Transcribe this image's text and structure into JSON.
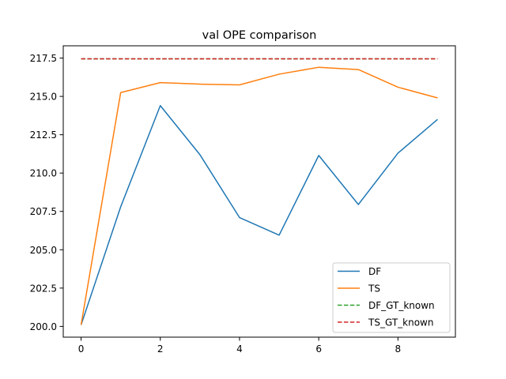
{
  "chart_data": {
    "type": "line",
    "title": "val OPE comparison",
    "xlabel": "",
    "ylabel": "",
    "xlim": [
      -0.45,
      9.45
    ],
    "ylim": [
      199.3,
      218.3
    ],
    "x_ticks": [
      0,
      2,
      4,
      6,
      8
    ],
    "x_tick_labels": [
      "0",
      "2",
      "4",
      "6",
      "8"
    ],
    "y_ticks": [
      200.0,
      202.5,
      205.0,
      207.5,
      210.0,
      212.5,
      215.0,
      217.5
    ],
    "y_tick_labels": [
      "200.0",
      "202.5",
      "205.0",
      "207.5",
      "210.0",
      "212.5",
      "215.0",
      "217.5"
    ],
    "grid": false,
    "legend_position": "lower-right",
    "x": [
      0,
      1,
      2,
      3,
      4,
      5,
      6,
      7,
      8,
      9
    ],
    "series": [
      {
        "name": "DF",
        "color": "#1f77b4",
        "dash": "solid",
        "values": [
          200.1,
          207.8,
          214.4,
          211.2,
          207.1,
          205.95,
          211.15,
          207.95,
          211.3,
          213.5
        ]
      },
      {
        "name": "TS",
        "color": "#ff7f0e",
        "dash": "solid",
        "values": [
          200.1,
          215.25,
          215.9,
          215.8,
          215.75,
          216.45,
          216.9,
          216.75,
          215.6,
          214.9
        ]
      },
      {
        "name": "DF_GT_known",
        "color": "#2ca02c",
        "dash": "dashed",
        "values": [
          217.45,
          217.45,
          217.45,
          217.45,
          217.45,
          217.45,
          217.45,
          217.45,
          217.45,
          217.45
        ]
      },
      {
        "name": "TS_GT_known",
        "color": "#d62728",
        "dash": "dashed",
        "values": [
          217.45,
          217.45,
          217.45,
          217.45,
          217.45,
          217.45,
          217.45,
          217.45,
          217.45,
          217.45
        ]
      }
    ]
  }
}
